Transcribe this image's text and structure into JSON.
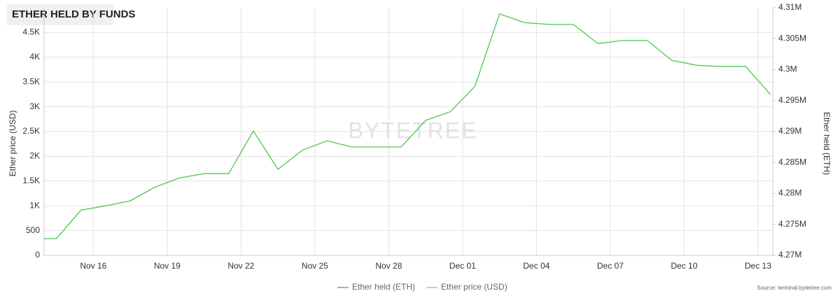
{
  "chart_data": {
    "type": "line",
    "title": "ETHER HELD BY FUNDS",
    "watermark": "BYTETREE",
    "source": "Source: terminal.bytetree.com",
    "y_label": "Ether price (USD)",
    "y2_label": "Ether held (ETH)",
    "grid": true,
    "legend": "bottom",
    "x": [
      14,
      14.5,
      15.5,
      16.5,
      17.5,
      18.5,
      19.5,
      20.5,
      21.5,
      22.5,
      23.5,
      24.5,
      25.5,
      26.5,
      27.5,
      28.5,
      29.5,
      30.5,
      31.5,
      32.5,
      33.5,
      34.5,
      35.5,
      36.5,
      37.5,
      38.5,
      39.5,
      40.5,
      41.5,
      42.5,
      43.5
    ],
    "xlim": [
      14,
      43.6
    ],
    "xticks": [
      {
        "value": 16,
        "label": "Nov 16"
      },
      {
        "value": 19,
        "label": "Nov 19"
      },
      {
        "value": 22,
        "label": "Nov 22"
      },
      {
        "value": 25,
        "label": "Nov 25"
      },
      {
        "value": 28,
        "label": "Nov 28"
      },
      {
        "value": 31,
        "label": "Dec 01"
      },
      {
        "value": 34,
        "label": "Dec 04"
      },
      {
        "value": 37,
        "label": "Dec 07"
      },
      {
        "value": 40,
        "label": "Dec 10"
      },
      {
        "value": 43,
        "label": "Dec 13"
      }
    ],
    "ylim": [
      0,
      5000
    ],
    "yticks": [
      0,
      500,
      {
        "value": 1000,
        "label": "1K"
      },
      {
        "value": 1500,
        "label": "1.5K"
      },
      {
        "value": 2000,
        "label": "2K"
      },
      {
        "value": 2500,
        "label": "2.5K"
      },
      {
        "value": 3000,
        "label": "3K"
      },
      {
        "value": 3500,
        "label": "3.5K"
      },
      {
        "value": 4000,
        "label": "4K"
      },
      {
        "value": 4500,
        "label": "4.5K"
      }
    ],
    "y2lim": [
      4270000,
      4310000
    ],
    "y2ticks": [
      {
        "value": 4270000,
        "label": "4.27M"
      },
      {
        "value": 4275000,
        "label": "4.275M"
      },
      {
        "value": 4280000,
        "label": "4.28M"
      },
      {
        "value": 4285000,
        "label": "4.285M"
      },
      {
        "value": 4290000,
        "label": "4.29M"
      },
      {
        "value": 4295000,
        "label": "4.295M"
      },
      {
        "value": 4300000,
        "label": "4.3M"
      },
      {
        "value": 4305000,
        "label": "4.305M"
      },
      {
        "value": 4310000,
        "label": "4.31M"
      }
    ],
    "series": [
      {
        "name": "Ether held (ETH)",
        "color": "#4cc94c",
        "axis": "y2",
        "values": [
          4272700,
          4272700,
          4277300,
          4278000,
          4278800,
          4281000,
          4282500,
          4283200,
          4283200,
          4290100,
          4283900,
          4287000,
          4288500,
          4287500,
          4287500,
          4287500,
          4291800,
          4293200,
          4297300,
          4309000,
          4307600,
          4307300,
          4307300,
          4304200,
          4304700,
          4304700,
          4301500,
          4300700,
          4300500,
          4300500,
          4296000
        ]
      },
      {
        "name": "Ether price (USD)",
        "color": "#bbbbbb",
        "values": [
          null,
          null,
          null,
          null,
          null,
          null,
          null,
          null,
          null,
          null,
          null,
          null,
          null,
          null,
          null,
          null,
          null,
          null,
          null,
          null,
          null,
          null,
          null,
          null,
          null,
          null,
          null,
          null,
          null,
          null,
          null
        ]
      }
    ]
  }
}
